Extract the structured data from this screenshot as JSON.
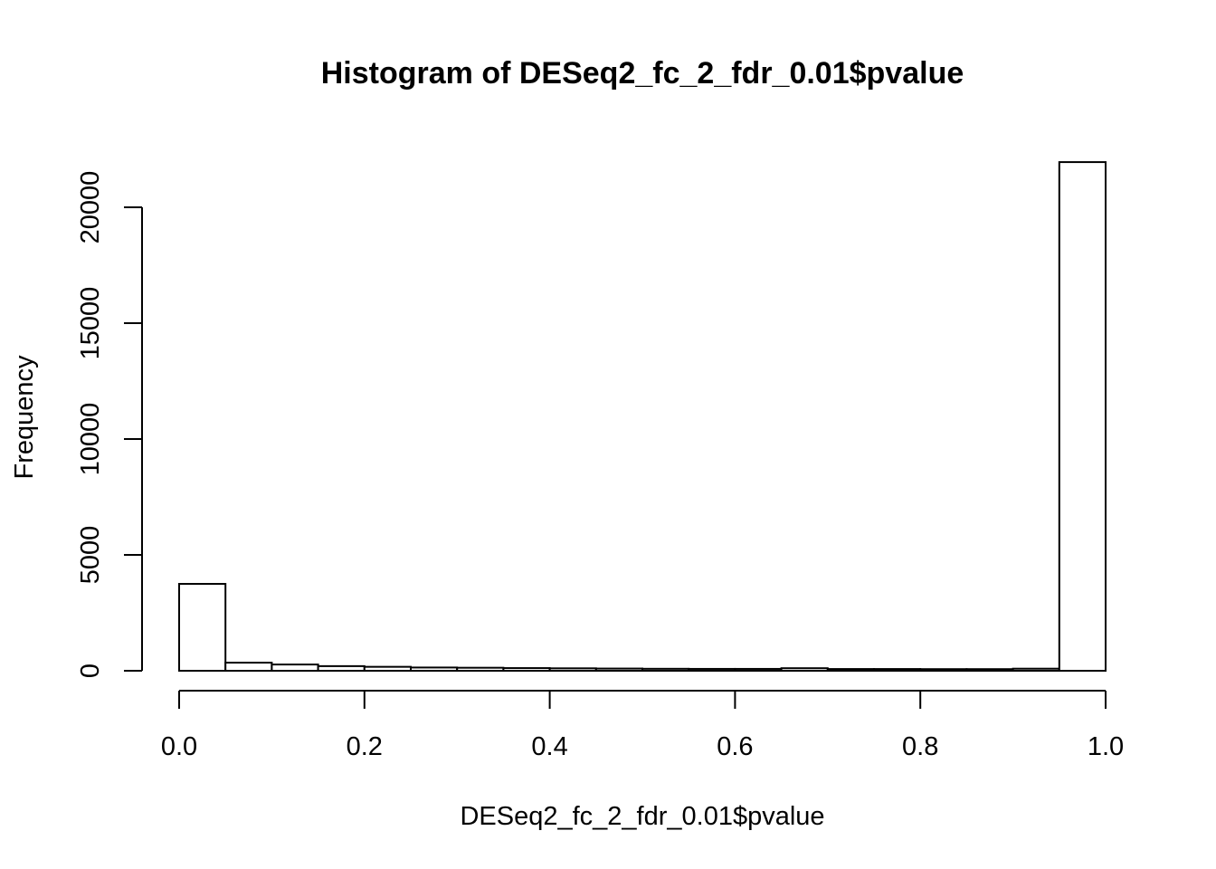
{
  "chart_data": {
    "type": "bar",
    "title": "Histogram of DESeq2_fc_2_fdr_0.01$pvalue",
    "xlabel": "DESeq2_fc_2_fdr_0.01$pvalue",
    "ylabel": "Frequency",
    "xlim": [
      0,
      1
    ],
    "ylim": [
      0,
      22000
    ],
    "grid": false,
    "x_ticks": [
      "0.0",
      "0.2",
      "0.4",
      "0.6",
      "0.8",
      "1.0"
    ],
    "x_tick_values": [
      0,
      0.2,
      0.4,
      0.6,
      0.8,
      1.0
    ],
    "y_ticks": [
      "0",
      "5000",
      "10000",
      "15000",
      "20000"
    ],
    "y_tick_values": [
      0,
      5000,
      10000,
      15000,
      20000
    ],
    "bin_width": 0.05,
    "bins": [
      {
        "x0": 0.0,
        "x1": 0.05,
        "count": 3750
      },
      {
        "x0": 0.05,
        "x1": 0.1,
        "count": 350
      },
      {
        "x0": 0.1,
        "x1": 0.15,
        "count": 270
      },
      {
        "x0": 0.15,
        "x1": 0.2,
        "count": 200
      },
      {
        "x0": 0.2,
        "x1": 0.25,
        "count": 170
      },
      {
        "x0": 0.25,
        "x1": 0.3,
        "count": 140
      },
      {
        "x0": 0.3,
        "x1": 0.35,
        "count": 130
      },
      {
        "x0": 0.35,
        "x1": 0.4,
        "count": 115
      },
      {
        "x0": 0.4,
        "x1": 0.45,
        "count": 105
      },
      {
        "x0": 0.45,
        "x1": 0.5,
        "count": 95
      },
      {
        "x0": 0.5,
        "x1": 0.55,
        "count": 85
      },
      {
        "x0": 0.55,
        "x1": 0.6,
        "count": 80
      },
      {
        "x0": 0.6,
        "x1": 0.65,
        "count": 80
      },
      {
        "x0": 0.65,
        "x1": 0.7,
        "count": 110
      },
      {
        "x0": 0.7,
        "x1": 0.75,
        "count": 75
      },
      {
        "x0": 0.75,
        "x1": 0.8,
        "count": 75
      },
      {
        "x0": 0.8,
        "x1": 0.85,
        "count": 70
      },
      {
        "x0": 0.85,
        "x1": 0.9,
        "count": 70
      },
      {
        "x0": 0.9,
        "x1": 0.95,
        "count": 90
      },
      {
        "x0": 0.95,
        "x1": 1.0,
        "count": 21950
      }
    ]
  }
}
